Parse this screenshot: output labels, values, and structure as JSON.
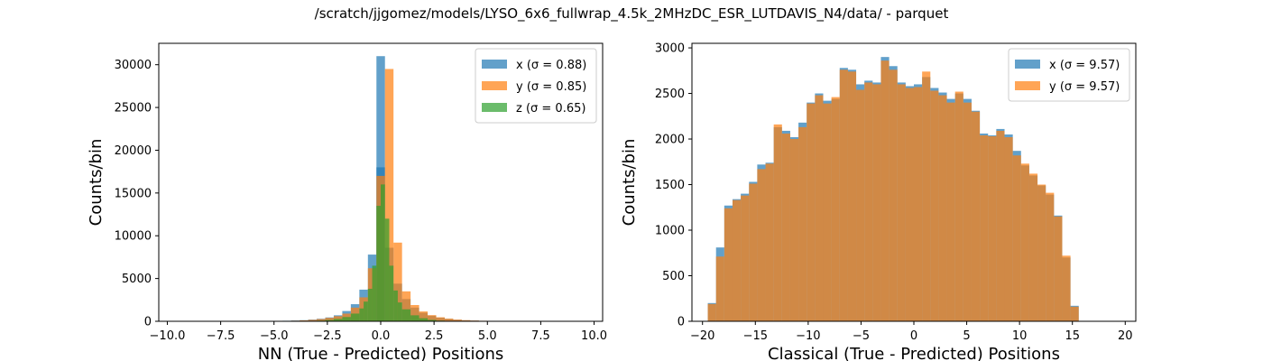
{
  "suptitle": "/scratch/jjgomez/models/LYSO_6x6_fullwrap_4.5k_2MHzDC_ESR_LUTDAVIS_N4/data/ - parquet",
  "colors": {
    "x": "#1f77b4",
    "y": "#ff7f0e",
    "z": "#2ca02c"
  },
  "chart_data": [
    {
      "type": "histogram",
      "xlabel": "NN (True - Predicted) Positions",
      "ylabel": "Counts/bin",
      "xlim": [
        -10.4,
        10.4
      ],
      "ylim": [
        0,
        32500
      ],
      "xticks": [
        -10,
        -7.5,
        -5,
        -2.5,
        0,
        2.5,
        5,
        7.5,
        10
      ],
      "xtick_labels": [
        "−10.0",
        "−7.5",
        "−5.0",
        "−2.5",
        "0.0",
        "2.5",
        "5.0",
        "7.5",
        "10.0"
      ],
      "yticks": [
        0,
        5000,
        10000,
        15000,
        20000,
        25000,
        30000
      ],
      "ytick_labels": [
        "0",
        "5000",
        "10000",
        "15000",
        "20000",
        "25000",
        "30000"
      ],
      "legend": {
        "placement": "top-right",
        "items": [
          "x (σ = 0.88)",
          "y (σ = 0.85)",
          "z (σ = 0.65)"
        ]
      },
      "series": [
        {
          "name": "x (σ = 0.88)",
          "color": "#1f77b4",
          "bins": [
            [
              -4.6,
              -4.2,
              60
            ],
            [
              -4.2,
              -3.8,
              90
            ],
            [
              -3.8,
              -3.4,
              130
            ],
            [
              -3.4,
              -3.0,
              200
            ],
            [
              -3.0,
              -2.6,
              300
            ],
            [
              -2.6,
              -2.2,
              450
            ],
            [
              -2.2,
              -1.8,
              700
            ],
            [
              -1.8,
              -1.4,
              1200
            ],
            [
              -1.4,
              -1.0,
              2000
            ],
            [
              -1.0,
              -0.6,
              3700
            ],
            [
              -0.6,
              -0.2,
              7800
            ],
            [
              -0.2,
              0.2,
              18000
            ],
            [
              0.2,
              0.6,
              8600
            ],
            [
              0.6,
              1.0,
              4400
            ],
            [
              1.0,
              1.4,
              2600
            ],
            [
              1.4,
              1.8,
              1600
            ],
            [
              1.8,
              2.2,
              1000
            ],
            [
              2.2,
              2.6,
              650
            ],
            [
              2.6,
              3.0,
              420
            ],
            [
              3.0,
              3.4,
              280
            ],
            [
              3.4,
              3.8,
              180
            ],
            [
              3.8,
              4.2,
              120
            ],
            [
              4.2,
              4.6,
              80
            ],
            [
              4.6,
              5.0,
              50
            ]
          ],
          "center_bin": [
            -0.2,
            0.2,
            31000
          ]
        },
        {
          "name": "y (σ = 0.85)",
          "color": "#ff7f0e",
          "bins": [
            [
              -4.6,
              -4.2,
              40
            ],
            [
              -4.2,
              -3.8,
              70
            ],
            [
              -3.8,
              -3.4,
              110
            ],
            [
              -3.4,
              -3.0,
              170
            ],
            [
              -3.0,
              -2.6,
              260
            ],
            [
              -2.6,
              -2.2,
              400
            ],
            [
              -2.2,
              -1.8,
              600
            ],
            [
              -1.8,
              -1.4,
              900
            ],
            [
              -1.4,
              -1.0,
              1600
            ],
            [
              -1.0,
              -0.6,
              2800
            ],
            [
              -0.6,
              -0.2,
              6200
            ],
            [
              -0.2,
              0.2,
              17000
            ],
            [
              0.2,
              0.6,
              29500
            ],
            [
              0.6,
              1.0,
              9200
            ],
            [
              1.0,
              1.4,
              3500
            ],
            [
              1.4,
              1.8,
              1900
            ],
            [
              1.8,
              2.2,
              1150
            ],
            [
              2.2,
              2.6,
              720
            ],
            [
              2.6,
              3.0,
              470
            ],
            [
              3.0,
              3.4,
              310
            ],
            [
              3.4,
              3.8,
              200
            ],
            [
              3.8,
              4.2,
              130
            ],
            [
              4.2,
              4.6,
              90
            ],
            [
              4.6,
              5.0,
              60
            ]
          ]
        },
        {
          "name": "z (σ = 0.65)",
          "color": "#2ca02c",
          "bins": [
            [
              -3.0,
              -2.6,
              80
            ],
            [
              -2.6,
              -2.2,
              150
            ],
            [
              -2.2,
              -1.8,
              280
            ],
            [
              -1.8,
              -1.4,
              500
            ],
            [
              -1.4,
              -1.0,
              900
            ],
            [
              -1.0,
              -0.8,
              1500
            ],
            [
              -0.8,
              -0.6,
              2300
            ],
            [
              -0.6,
              -0.4,
              3800
            ],
            [
              -0.4,
              -0.2,
              6500
            ],
            [
              -0.2,
              0.0,
              13500
            ],
            [
              0.0,
              0.2,
              16000
            ],
            [
              0.2,
              0.4,
              12000
            ],
            [
              0.4,
              0.6,
              6500
            ],
            [
              0.6,
              0.8,
              3600
            ],
            [
              0.8,
              1.0,
              2200
            ],
            [
              1.0,
              1.4,
              1400
            ],
            [
              1.4,
              1.8,
              700
            ],
            [
              1.8,
              2.2,
              360
            ],
            [
              2.2,
              2.6,
              170
            ],
            [
              2.6,
              3.0,
              80
            ]
          ]
        }
      ]
    },
    {
      "type": "histogram",
      "xlabel": "Classical (True - Predicted) Positions",
      "ylabel": "Counts/bin",
      "xlim": [
        -21.0,
        21.0
      ],
      "ylim": [
        0,
        3050
      ],
      "xticks": [
        -20,
        -15,
        -10,
        -5,
        0,
        5,
        10,
        15,
        20
      ],
      "xtick_labels": [
        "−20",
        "−15",
        "−10",
        "−5",
        "0",
        "5",
        "10",
        "15",
        "20"
      ],
      "yticks": [
        0,
        500,
        1000,
        1500,
        2000,
        2500,
        3000
      ],
      "ytick_labels": [
        "0",
        "500",
        "1000",
        "1500",
        "2000",
        "2500",
        "3000"
      ],
      "legend": {
        "placement": "top-right",
        "items": [
          "x (σ = 9.57)",
          "y (σ = 9.57)"
        ]
      },
      "bin_start": -19.5,
      "bin_width": 0.78,
      "series": [
        {
          "name": "x (σ = 9.57)",
          "color": "#1f77b4",
          "values": [
            200,
            810,
            1270,
            1340,
            1400,
            1530,
            1720,
            1740,
            2130,
            2090,
            2020,
            2180,
            2400,
            2500,
            2420,
            2440,
            2780,
            2760,
            2600,
            2640,
            2620,
            2900,
            2800,
            2620,
            2580,
            2600,
            2680,
            2560,
            2510,
            2440,
            2500,
            2440,
            2310,
            2060,
            2040,
            2110,
            2050,
            1870,
            1710,
            1600,
            1490,
            1390,
            1160,
            700,
            170
          ]
        },
        {
          "name": "y (σ = 9.57)",
          "color": "#ff7f0e",
          "values": [
            190,
            710,
            1240,
            1330,
            1380,
            1510,
            1670,
            1730,
            2160,
            2060,
            2000,
            2130,
            2390,
            2480,
            2390,
            2460,
            2760,
            2740,
            2540,
            2620,
            2600,
            2860,
            2760,
            2600,
            2560,
            2570,
            2740,
            2530,
            2480,
            2400,
            2520,
            2400,
            2300,
            2040,
            2030,
            2090,
            2020,
            1820,
            1730,
            1620,
            1500,
            1410,
            1150,
            720,
            160
          ]
        }
      ]
    }
  ]
}
